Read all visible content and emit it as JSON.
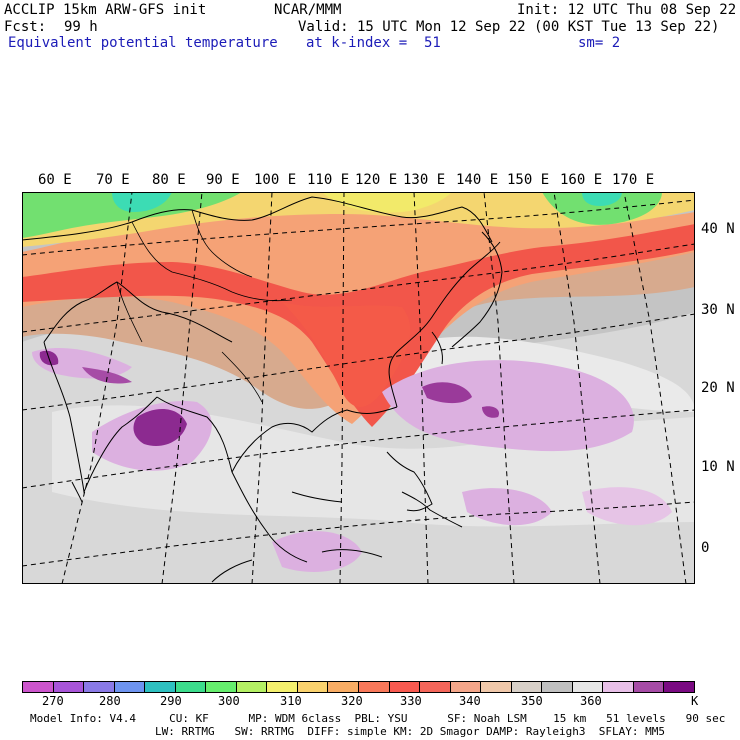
{
  "header": {
    "model": "ACCLIP 15km ARW-GFS init",
    "org": "NCAR/MMM",
    "init": "Init: 12 UTC Thu 08 Sep 22",
    "fcst_label": "Fcst:",
    "fcst_value": "99 h",
    "valid": "Valid: 15 UTC Mon 12 Sep 22 (00 KST Tue 13 Sep 22)",
    "field": "Equivalent potential temperature",
    "level": "at k-index =  51",
    "smooth": "sm= 2"
  },
  "lon_labels": [
    "60 E",
    "70 E",
    "80 E",
    "90 E",
    "100 E",
    "110 E",
    "120 E",
    "130 E",
    "140 E",
    "150 E",
    "160 E",
    "170 E"
  ],
  "lat_labels": [
    "40 N",
    "30 N",
    "20 N",
    "10 N",
    "0"
  ],
  "colorbar": {
    "colors": [
      "#cc55cc",
      "#a855d8",
      "#8a7ae6",
      "#6e94f0",
      "#2ec0c0",
      "#3cdc8c",
      "#66ee6e",
      "#b4f064",
      "#f4f06e",
      "#fad26e",
      "#f8ac64",
      "#f8785a",
      "#f85a50",
      "#f4665a",
      "#f4a68a",
      "#f0c8aa",
      "#d8d0c8",
      "#c0c0c0",
      "#e6e6e6",
      "#e8c0e8",
      "#a64ca6",
      "#7a0a82"
    ],
    "ticks": [
      "270",
      "280",
      "290",
      "300",
      "310",
      "320",
      "330",
      "340",
      "350",
      "360"
    ],
    "unit": "K"
  },
  "footer": {
    "line1": "Model Info: V4.4     CU: KF      MP: WDM 6class  PBL: YSU      SF: Noah LSM    15 km   51 levels   90 sec",
    "line2": "LW: RRTMG   SW: RRTMG  DIFF: simple KM: 2D Smagor DAMP: Rayleigh3  SFLAY: MM5"
  }
}
